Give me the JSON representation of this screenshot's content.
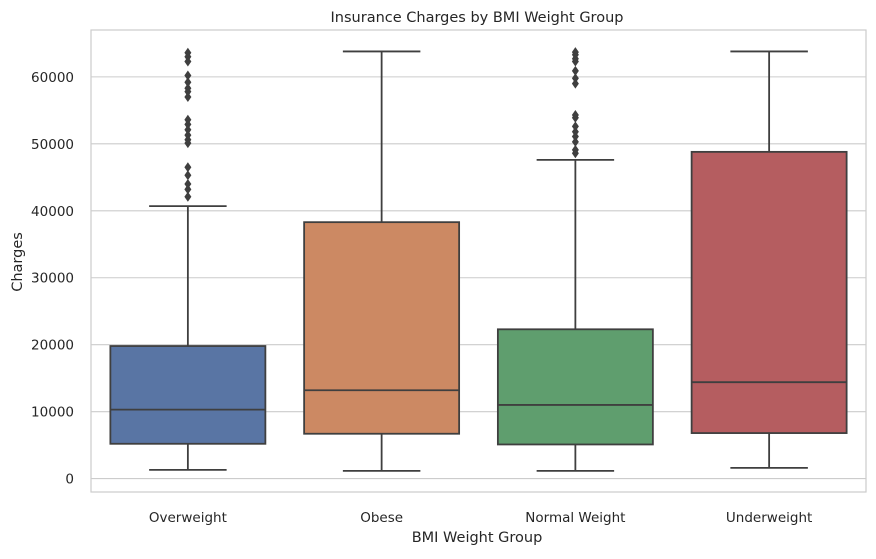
{
  "chart_data": {
    "type": "box",
    "title": "Insurance Charges by BMI Weight Group",
    "xlabel": "BMI Weight Group",
    "ylabel": "Charges",
    "ylim": [
      -2000,
      67000
    ],
    "yticks": [
      0,
      10000,
      20000,
      30000,
      40000,
      50000,
      60000
    ],
    "ytick_labels": [
      "0",
      "10000",
      "20000",
      "30000",
      "40000",
      "50000",
      "60000"
    ],
    "grid": true,
    "categories": [
      "Overweight",
      "Obese",
      "Normal Weight",
      "Underweight"
    ],
    "colors": [
      "#5975a4",
      "#cc8963",
      "#5f9e6e",
      "#b55d60"
    ],
    "boxes": [
      {
        "category": "Overweight",
        "whisker_low": 1300,
        "q1": 5200,
        "median": 10300,
        "q3": 19800,
        "whisker_high": 40700,
        "outliers": [
          42100,
          43200,
          44000,
          45300,
          46500,
          50100,
          50600,
          51300,
          52100,
          52900,
          53600,
          57000,
          57800,
          58300,
          59200,
          60200,
          62300,
          63000,
          63600
        ]
      },
      {
        "category": "Obese",
        "whisker_low": 1150,
        "q1": 6700,
        "median": 13200,
        "q3": 38300,
        "whisker_high": 63800,
        "outliers": []
      },
      {
        "category": "Normal Weight",
        "whisker_low": 1150,
        "q1": 5100,
        "median": 11000,
        "q3": 22300,
        "whisker_high": 47600,
        "outliers": [
          48600,
          49100,
          50300,
          51100,
          51800,
          52600,
          53900,
          54300,
          59000,
          59800,
          60900,
          62300,
          62700,
          63300,
          63700
        ]
      },
      {
        "category": "Underweight",
        "whisker_low": 1600,
        "q1": 6800,
        "median": 14400,
        "q3": 48800,
        "whisker_high": 63800,
        "outliers": []
      }
    ]
  }
}
